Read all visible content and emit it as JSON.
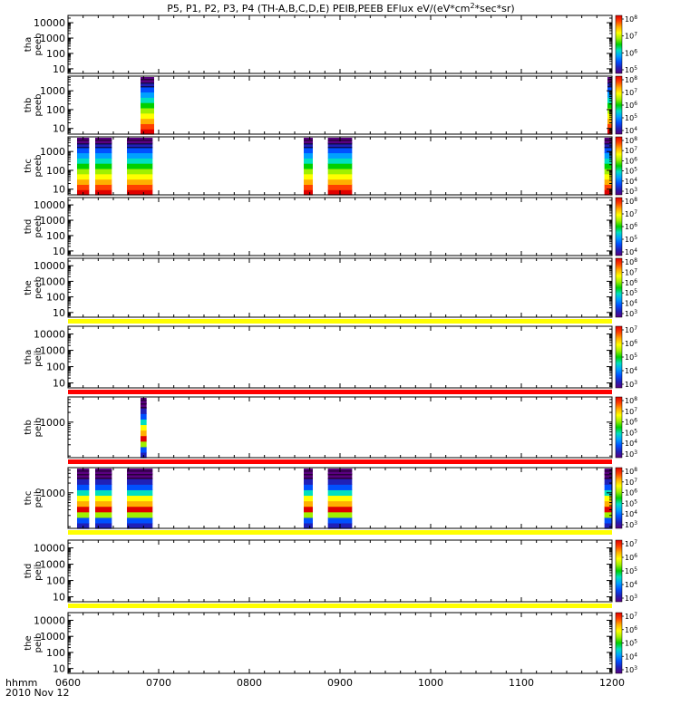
{
  "title": "P5, P1, P2, P3, P4 (TH-A,B,C,D,E) PEIB,PEEB EFlux eV/(eV*cm²*sec*sr)",
  "x_axis": {
    "prefix": "hhmm",
    "date": "2010 Nov 12",
    "tick_labels": [
      "0600",
      "0700",
      "0800",
      "0900",
      "1000",
      "1100",
      "1200"
    ]
  },
  "chart_data": [
    {
      "type": "heatmap",
      "probe": "tha",
      "product": "peeb",
      "ylabel": [
        "tha",
        "peeb"
      ],
      "y_ticks": [
        "10",
        "100",
        "1000",
        "10000"
      ],
      "y_range": [
        5,
        30000
      ],
      "log_y": true,
      "colorbar": {
        "ticks": [
          "10^5",
          "10^6",
          "10^7",
          "10^8"
        ]
      },
      "intervals": [],
      "status_bar": null
    },
    {
      "type": "heatmap",
      "probe": "thb",
      "product": "peeb",
      "ylabel": [
        "thb",
        "peeb"
      ],
      "y_ticks": [
        "10",
        "100",
        "1000"
      ],
      "y_range": [
        5,
        6000
      ],
      "log_y": true,
      "colorbar": {
        "ticks": [
          "10^4",
          "10^5",
          "10^6",
          "10^7",
          "10^8"
        ]
      },
      "intervals": [
        {
          "start": "0648",
          "end": "0657"
        },
        {
          "start": "1157",
          "end": "1200"
        }
      ],
      "status_bar": null
    },
    {
      "type": "heatmap",
      "probe": "thc",
      "product": "peeb",
      "ylabel": [
        "thc",
        "peeb"
      ],
      "y_ticks": [
        "10",
        "100",
        "1000"
      ],
      "y_range": [
        5,
        6000
      ],
      "log_y": true,
      "colorbar": {
        "ticks": [
          "10^3",
          "10^4",
          "10^5",
          "10^6",
          "10^7",
          "10^8"
        ]
      },
      "intervals": [
        {
          "start": "0606",
          "end": "0614"
        },
        {
          "start": "0618",
          "end": "0629"
        },
        {
          "start": "0639",
          "end": "0656"
        },
        {
          "start": "0836",
          "end": "0842"
        },
        {
          "start": "0852",
          "end": "0908"
        },
        {
          "start": "1155",
          "end": "1200"
        }
      ],
      "status_bar": null
    },
    {
      "type": "heatmap",
      "probe": "thd",
      "product": "peeb",
      "ylabel": [
        "thd",
        "peeb"
      ],
      "y_ticks": [
        "10",
        "100",
        "1000",
        "10000"
      ],
      "y_range": [
        5,
        30000
      ],
      "log_y": true,
      "colorbar": {
        "ticks": [
          "10^4",
          "10^5",
          "10^6",
          "10^7",
          "10^8"
        ]
      },
      "intervals": [],
      "status_bar": null
    },
    {
      "type": "heatmap",
      "probe": "the",
      "product": "peeb",
      "ylabel": [
        "the",
        "peeb"
      ],
      "y_ticks": [
        "10",
        "100",
        "1000",
        "10000"
      ],
      "y_range": [
        5,
        30000
      ],
      "log_y": true,
      "colorbar": {
        "ticks": [
          "10^3",
          "10^4",
          "10^5",
          "10^6",
          "10^7",
          "10^8"
        ]
      },
      "intervals": [],
      "status_bar": "yellow"
    },
    {
      "type": "heatmap",
      "probe": "tha",
      "product": "peib",
      "ylabel": [
        "tha",
        "peib"
      ],
      "y_ticks": [
        "10",
        "100",
        "1000",
        "10000"
      ],
      "y_range": [
        5,
        30000
      ],
      "log_y": true,
      "colorbar": {
        "ticks": [
          "10^3",
          "10^4",
          "10^5",
          "10^6",
          "10^7"
        ]
      },
      "intervals": [],
      "status_bar": "red"
    },
    {
      "type": "heatmap",
      "probe": "thb",
      "product": "peib",
      "ylabel": [
        "thb",
        "peib"
      ],
      "y_ticks": [
        "1000"
      ],
      "y_range": [
        80,
        6000
      ],
      "log_y": true,
      "colorbar": {
        "ticks": [
          "10^3",
          "10^4",
          "10^5",
          "10^6",
          "10^7",
          "10^8"
        ]
      },
      "intervals": [
        {
          "start": "0648",
          "end": "0652"
        }
      ],
      "status_bar": "red"
    },
    {
      "type": "heatmap",
      "probe": "thc",
      "product": "peib",
      "ylabel": [
        "thc",
        "peib"
      ],
      "y_ticks": [
        "1000"
      ],
      "y_range": [
        80,
        6000
      ],
      "log_y": true,
      "colorbar": {
        "ticks": [
          "10^3",
          "10^4",
          "10^5",
          "10^6",
          "10^7",
          "10^8"
        ]
      },
      "intervals": [
        {
          "start": "0606",
          "end": "0614"
        },
        {
          "start": "0618",
          "end": "0629"
        },
        {
          "start": "0639",
          "end": "0656"
        },
        {
          "start": "0836",
          "end": "0842"
        },
        {
          "start": "0852",
          "end": "0908"
        },
        {
          "start": "1155",
          "end": "1200"
        }
      ],
      "status_bar": "yellow"
    },
    {
      "type": "heatmap",
      "probe": "thd",
      "product": "peib",
      "ylabel": [
        "thd",
        "peib"
      ],
      "y_ticks": [
        "10",
        "100",
        "1000",
        "10000"
      ],
      "y_range": [
        5,
        30000
      ],
      "log_y": true,
      "colorbar": {
        "ticks": [
          "10^3",
          "10^4",
          "10^5",
          "10^6",
          "10^7"
        ]
      },
      "intervals": [],
      "status_bar": "yellow"
    },
    {
      "type": "heatmap",
      "probe": "the",
      "product": "peib",
      "ylabel": [
        "the",
        "peib"
      ],
      "y_ticks": [
        "10",
        "100",
        "1000",
        "10000"
      ],
      "y_range": [
        5,
        30000
      ],
      "log_y": true,
      "colorbar": {
        "ticks": [
          "10^3",
          "10^4",
          "10^5",
          "10^6",
          "10^7"
        ]
      },
      "intervals": [],
      "status_bar": null
    }
  ],
  "colors": {
    "rainbow": [
      "#5a0080",
      "#2020b8",
      "#0050ff",
      "#00a0ff",
      "#00e0c0",
      "#00d000",
      "#a0f000",
      "#ffff00",
      "#ffb000",
      "#ff4000",
      "#e00000",
      "#000000"
    ],
    "status_yellow": "#ffff00",
    "status_red": "#ff0000"
  }
}
